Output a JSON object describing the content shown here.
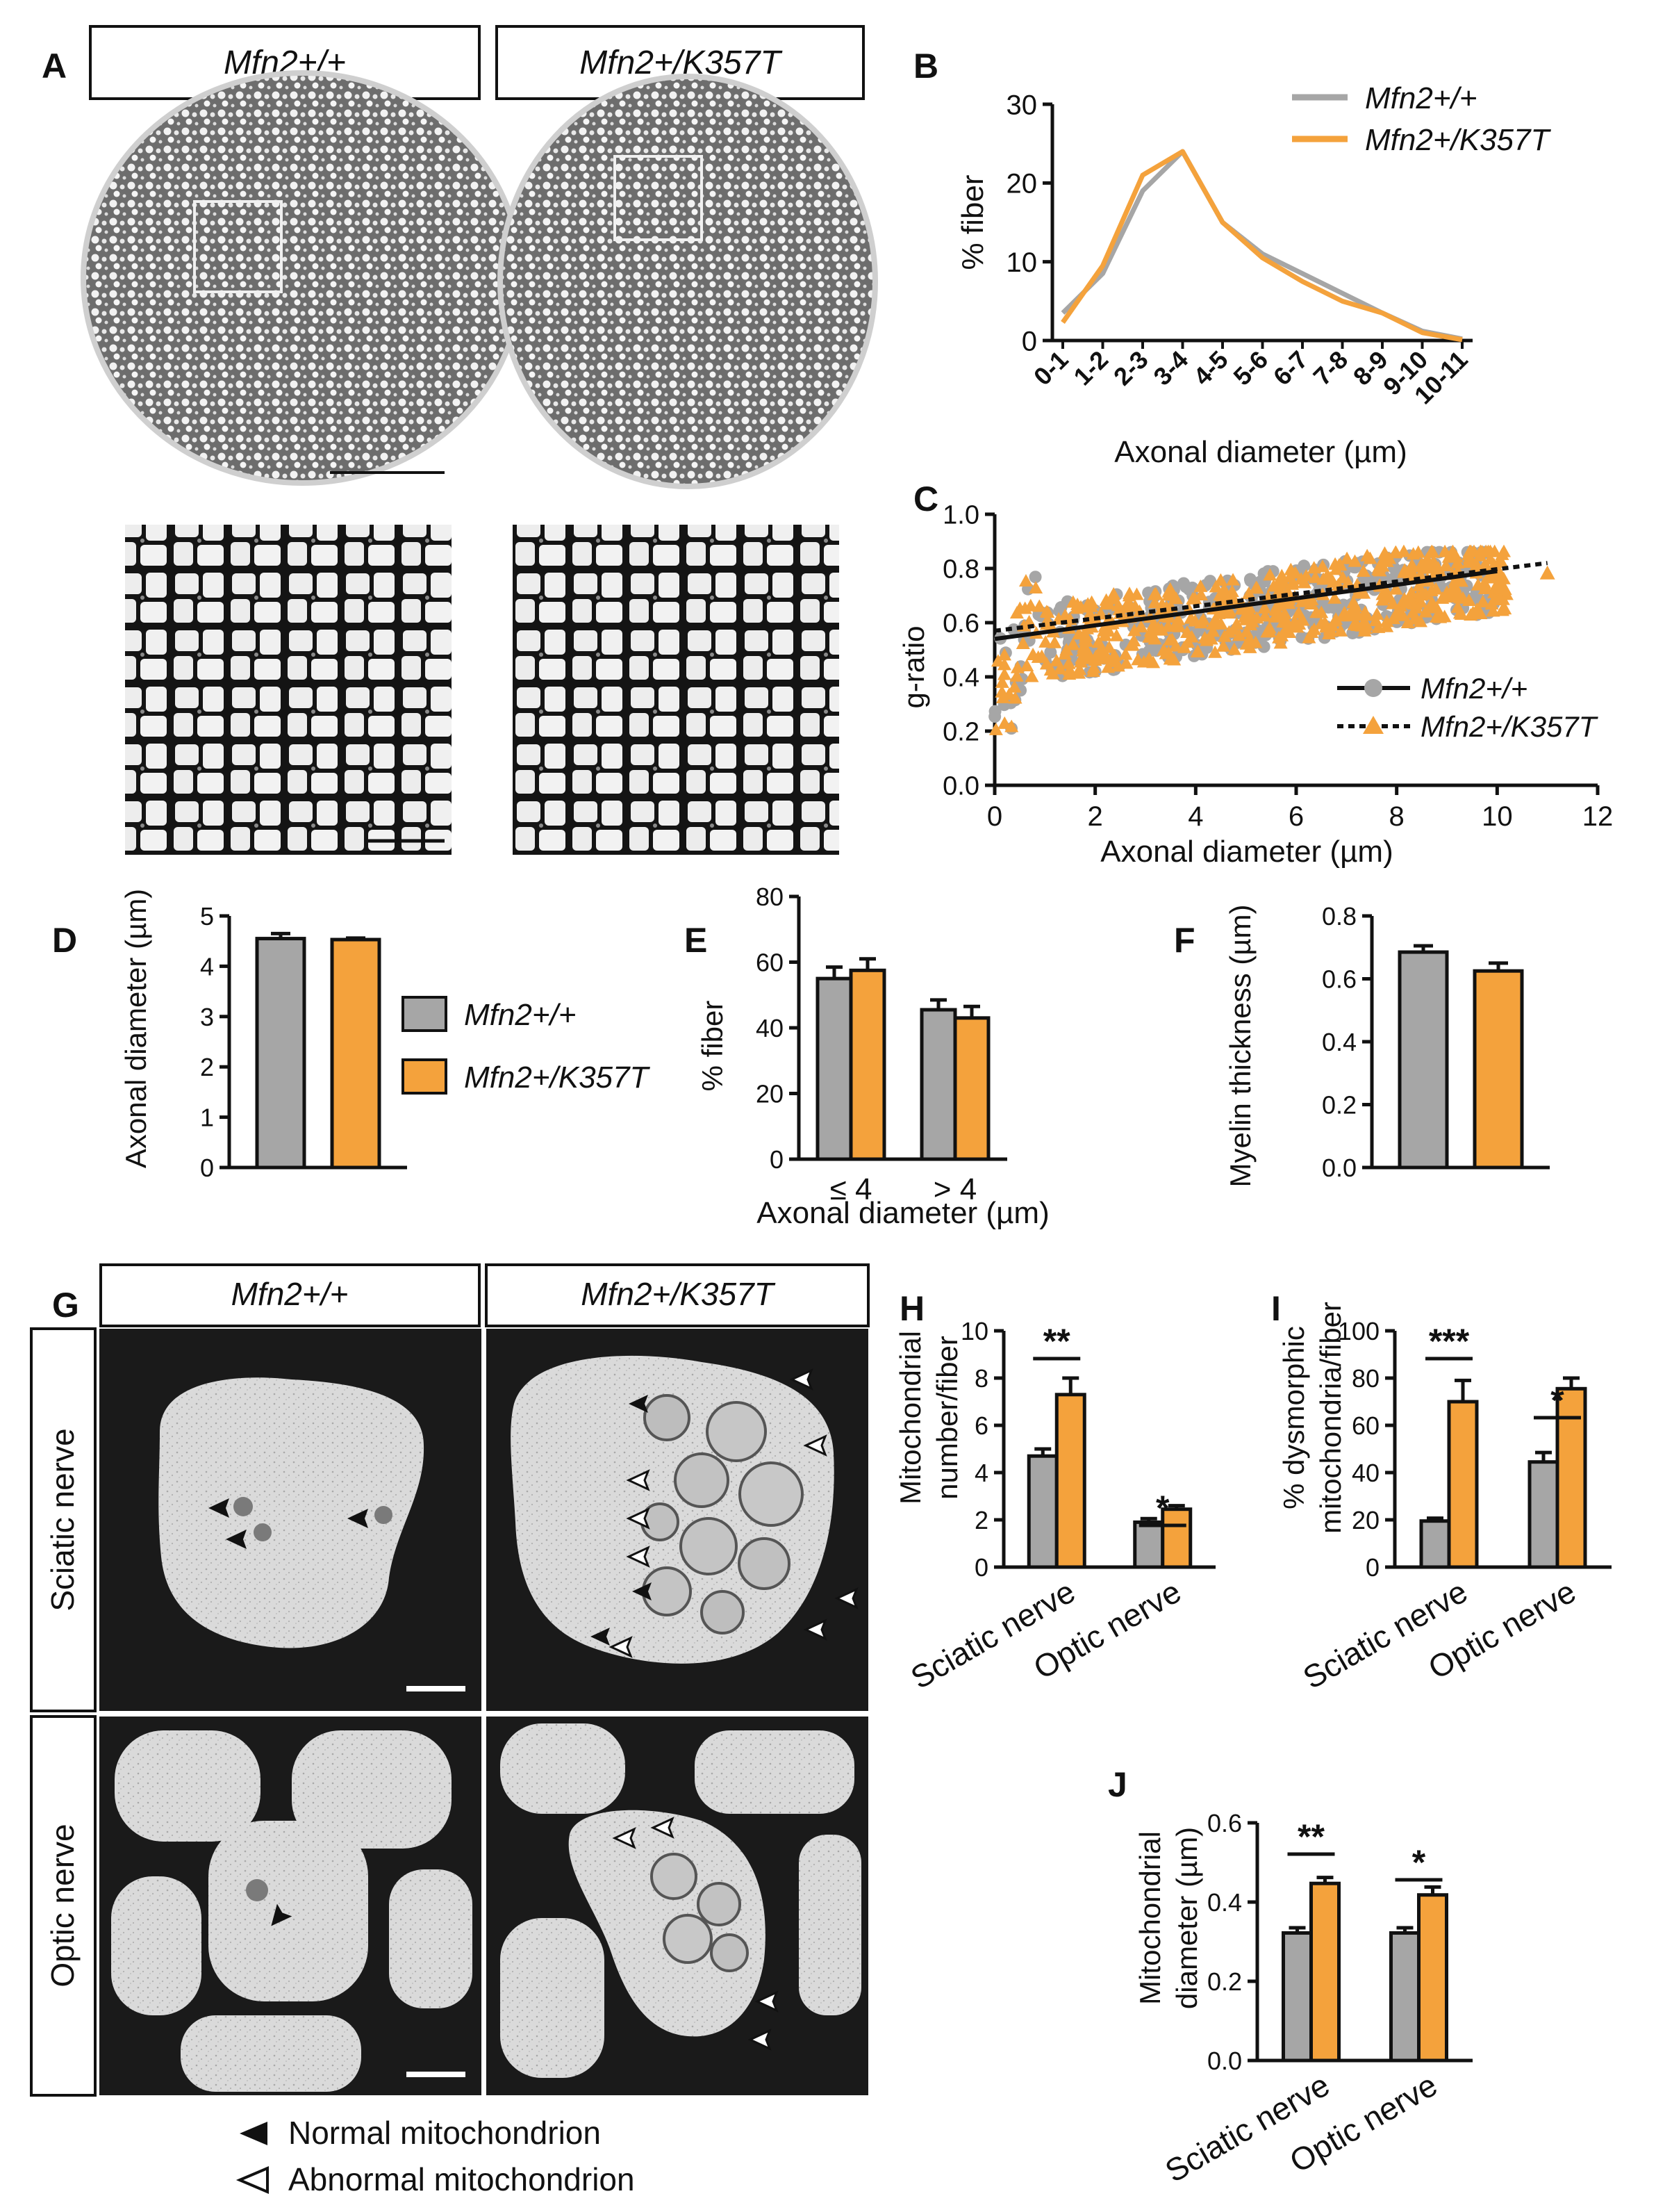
{
  "colors": {
    "wt": "#a6a6a6",
    "mut": "#f4a23c",
    "wt_line": "#a6a6a6",
    "mut_line": "#f4a23c",
    "axis": "#111111"
  },
  "genotypes": {
    "wt": "Mfn2+/+",
    "mut": "Mfn2+/K357T"
  },
  "panel_letters": {
    "A": "A",
    "B": "B",
    "C": "C",
    "D": "D",
    "E": "E",
    "F": "F",
    "G": "G",
    "H": "H",
    "I": "I",
    "J": "J"
  },
  "panel_a": {
    "header_wt": "Mfn2+/+",
    "header_mut": "Mfn2+/K357T"
  },
  "panel_g": {
    "header_wt": "Mfn2+/+",
    "header_mut": "Mfn2+/K357T",
    "row1": "Sciatic nerve",
    "row2": "Optic nerve",
    "legend": {
      "normal": "Normal mitochondrion",
      "abnormal": "Abnormal mitochondrion"
    },
    "icons": [
      "filled-arrowhead-icon",
      "open-arrowhead-icon"
    ]
  },
  "chart_data": [
    {
      "id": "B",
      "type": "line",
      "categories": [
        "0-1",
        "1-2",
        "2-3",
        "3-4",
        "4-5",
        "5-6",
        "6-7",
        "7-8",
        "8-9",
        "9-10",
        "10-11"
      ],
      "series": [
        {
          "name": "Mfn2+/+",
          "values": [
            3.5,
            8.5,
            19,
            24,
            15,
            11,
            8.5,
            6,
            3.5,
            1.2,
            0.2
          ]
        },
        {
          "name": "Mfn2+/K357T",
          "values": [
            2.3,
            9.5,
            21,
            24,
            15,
            10.5,
            7.5,
            5,
            3.5,
            1,
            0.1
          ]
        }
      ],
      "ylabel": "% fiber",
      "xlabel": "Axonal diameter (µm)",
      "ylim": [
        0,
        30
      ],
      "yticks": [
        "0",
        "10",
        "20",
        "30"
      ],
      "legend": "top-right",
      "grid": false
    },
    {
      "id": "C",
      "type": "scatter",
      "series": [
        {
          "name": "Mfn2+/+",
          "marker": "circle",
          "fit": {
            "type": "linear",
            "x0": 0,
            "y0": 0.54,
            "x1": 10,
            "y1": 0.79
          }
        },
        {
          "name": "Mfn2+/K357T",
          "marker": "triangle",
          "fit": {
            "type": "linear",
            "x0": 0,
            "y0": 0.57,
            "x1": 11,
            "y1": 0.82
          }
        }
      ],
      "ylabel": "g-ratio",
      "xlabel": "Axonal diameter (µm)",
      "xlim": [
        0,
        12
      ],
      "ylim": [
        0,
        1.0
      ],
      "xticks": [
        "0",
        "2",
        "4",
        "6",
        "8",
        "10",
        "12"
      ],
      "yticks": [
        "0.0",
        "0.2",
        "0.4",
        "0.6",
        "0.8",
        "1.0"
      ],
      "legend": "bottom-right",
      "grid": false
    },
    {
      "id": "D",
      "type": "bar",
      "categories": [
        "Mfn2+/+",
        "Mfn2+/K357T"
      ],
      "values": [
        4.55,
        4.53
      ],
      "errors": [
        0.1,
        0.03
      ],
      "ylabel": "Axonal diameter (µm)",
      "ylim": [
        0,
        5
      ],
      "yticks": [
        "0",
        "1",
        "2",
        "3",
        "4",
        "5"
      ],
      "legend": "right"
    },
    {
      "id": "E",
      "type": "bar",
      "categories": [
        "≤ 4",
        "> 4"
      ],
      "series": [
        {
          "name": "Mfn2+/+",
          "values": [
            55,
            45.5
          ],
          "errors": [
            3.5,
            3
          ]
        },
        {
          "name": "Mfn2+/K357T",
          "values": [
            57.5,
            43
          ],
          "errors": [
            3.5,
            3.5
          ]
        }
      ],
      "ylabel": "% fiber",
      "xlabel": "Axonal diameter (µm)",
      "ylim": [
        0,
        80
      ],
      "yticks": [
        "0",
        "20",
        "40",
        "60",
        "80"
      ]
    },
    {
      "id": "F",
      "type": "bar",
      "categories": [
        "Mfn2+/+",
        "Mfn2+/K357T"
      ],
      "values": [
        0.685,
        0.625
      ],
      "errors": [
        0.02,
        0.025
      ],
      "ylabel": "Myelin thickness (µm)",
      "ylim": [
        0,
        0.8
      ],
      "yticks": [
        "0.0",
        "0.2",
        "0.4",
        "0.6",
        "0.8"
      ]
    },
    {
      "id": "H",
      "type": "bar",
      "categories": [
        "Sciatic nerve",
        "Optic nerve"
      ],
      "series": [
        {
          "name": "Mfn2+/+",
          "values": [
            4.7,
            1.9
          ],
          "errors": [
            0.3,
            0.15
          ]
        },
        {
          "name": "Mfn2+/K357T",
          "values": [
            7.3,
            2.45
          ],
          "errors": [
            0.7,
            0.15
          ]
        }
      ],
      "ylabel": "Mitochondrial number/fiber",
      "ylim": [
        0,
        10
      ],
      "yticks": [
        "0",
        "2",
        "4",
        "6",
        "8",
        "10"
      ],
      "significance": [
        "**",
        "*"
      ]
    },
    {
      "id": "I",
      "type": "bar",
      "categories": [
        "Sciatic nerve",
        "Optic nerve"
      ],
      "series": [
        {
          "name": "Mfn2+/+",
          "values": [
            19.5,
            44.5
          ],
          "errors": [
            1.2,
            4
          ]
        },
        {
          "name": "Mfn2+/K357T",
          "values": [
            70,
            75.5
          ],
          "errors": [
            9,
            4.5
          ]
        }
      ],
      "ylabel": "% dysmorphic mitochondria/fiber",
      "ylim": [
        0,
        100
      ],
      "yticks": [
        "0",
        "20",
        "40",
        "60",
        "80",
        "100"
      ],
      "significance": [
        "***",
        "*"
      ]
    },
    {
      "id": "J",
      "type": "bar",
      "categories": [
        "Sciatic nerve",
        "Optic nerve"
      ],
      "series": [
        {
          "name": "Mfn2+/+",
          "values": [
            0.322,
            0.322
          ],
          "errors": [
            0.013,
            0.013
          ]
        },
        {
          "name": "Mfn2+/K357T",
          "values": [
            0.447,
            0.418
          ],
          "errors": [
            0.015,
            0.02
          ]
        }
      ],
      "ylabel": "Mitochondrial diameter (µm)",
      "ylim": [
        0,
        0.6
      ],
      "yticks": [
        "0.0",
        "0.2",
        "0.4",
        "0.6"
      ],
      "significance": [
        "**",
        "*"
      ]
    }
  ]
}
